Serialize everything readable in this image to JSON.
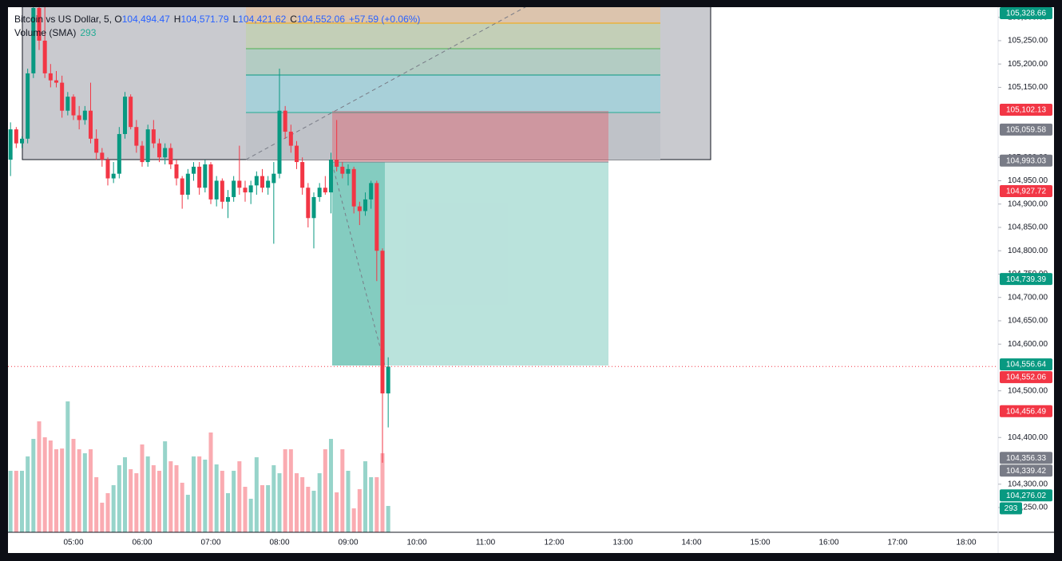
{
  "chart_data": {
    "type": "candlestick",
    "title": "Bitcoin vs US Dollar, 5,",
    "legend": [
      {
        "key": "O",
        "value": "104,494.47"
      },
      {
        "key": "H",
        "value": "104,571.79"
      },
      {
        "key": "L",
        "value": "104,421.62"
      },
      {
        "key": "C",
        "value": "104,552.06"
      }
    ],
    "change": "+57.59 (+0.06%)",
    "volume_title": "Volume (SMA)",
    "volume_label": "293",
    "x": [
      "04:05",
      "04:10",
      "04:15",
      "04:20",
      "04:25",
      "04:30",
      "04:35",
      "04:40",
      "04:45",
      "04:50",
      "04:55",
      "05:00",
      "05:05",
      "05:10",
      "05:15",
      "05:20",
      "05:25",
      "05:30",
      "05:35",
      "05:40",
      "05:45",
      "05:50",
      "05:55",
      "06:00",
      "06:05",
      "06:10",
      "06:15",
      "06:20",
      "06:25",
      "06:30",
      "06:35",
      "06:40",
      "06:45",
      "06:50",
      "06:55",
      "07:00",
      "07:05",
      "07:10",
      "07:15",
      "07:20",
      "07:25",
      "07:30",
      "07:35",
      "07:40",
      "07:45",
      "07:50",
      "07:55",
      "08:00",
      "08:05",
      "08:10",
      "08:15",
      "08:20",
      "08:25",
      "08:30",
      "08:35",
      "08:40",
      "08:45",
      "08:50",
      "08:55",
      "09:00",
      "09:05",
      "09:10",
      "09:15",
      "09:20",
      "09:25",
      "09:30",
      "09:35"
    ],
    "open": [
      104995,
      105060,
      105030,
      105040,
      105180,
      105320,
      105250,
      105180,
      105165,
      105160,
      105100,
      105130,
      105090,
      105080,
      105100,
      105040,
      105010,
      104995,
      104955,
      104965,
      105050,
      105130,
      105065,
      105025,
      104990,
      105060,
      105030,
      105000,
      105020,
      104985,
      104955,
      104920,
      104965,
      104980,
      104935,
      104985,
      104910,
      104950,
      104905,
      104915,
      104950,
      104935,
      104925,
      104940,
      104960,
      104935,
      104945,
      104965,
      105100,
      105055,
      105025,
      104990,
      104935,
      104870,
      104915,
      104935,
      104925,
      104995,
      104980,
      104965,
      104975,
      104895,
      104885,
      104910,
      104945,
      104800,
      104494.47
    ],
    "high": [
      105075,
      105065,
      105045,
      105190,
      105330,
      105340,
      105330,
      105200,
      105185,
      105175,
      105140,
      105135,
      105110,
      105110,
      105160,
      105060,
      105020,
      105000,
      104990,
      105065,
      105140,
      105135,
      105080,
      105035,
      105070,
      105080,
      105040,
      105030,
      105030,
      104995,
      104960,
      104975,
      104990,
      104990,
      104995,
      104990,
      104960,
      104955,
      104930,
      104960,
      105025,
      104950,
      104950,
      104970,
      104975,
      104960,
      104990,
      105190,
      105110,
      105070,
      105035,
      105000,
      104945,
      104925,
      104945,
      104960,
      105010,
      105080,
      104990,
      104985,
      104980,
      104905,
      104925,
      104950,
      104950,
      104805,
      104571.79
    ],
    "low": [
      104960,
      105020,
      105020,
      105030,
      105170,
      105230,
      105170,
      105150,
      105150,
      105085,
      105090,
      105080,
      105060,
      105070,
      105030,
      104995,
      104980,
      104940,
      104945,
      104955,
      105040,
      105060,
      105010,
      104980,
      104980,
      105020,
      104990,
      104985,
      104975,
      104940,
      104890,
      104910,
      104950,
      104920,
      104925,
      104900,
      104895,
      104890,
      104870,
      104905,
      104920,
      104905,
      104900,
      104920,
      104925,
      104920,
      104815,
      104955,
      105040,
      105010,
      104975,
      104920,
      104850,
      104805,
      104905,
      104920,
      104880,
      104970,
      104955,
      104940,
      104880,
      104855,
      104875,
      104890,
      104735,
      104346,
      104421.62
    ],
    "close": [
      105060,
      105030,
      105040,
      105180,
      105320,
      105250,
      105180,
      105165,
      105160,
      105100,
      105130,
      105090,
      105080,
      105100,
      105040,
      105010,
      104995,
      104955,
      104965,
      105050,
      105130,
      105065,
      105025,
      104990,
      105060,
      105030,
      105000,
      105020,
      104985,
      104955,
      104920,
      104965,
      104980,
      104935,
      104985,
      104910,
      104950,
      104905,
      104915,
      104950,
      104935,
      104925,
      104940,
      104960,
      104935,
      104950,
      104965,
      105100,
      105055,
      105025,
      104990,
      104935,
      104870,
      104915,
      104935,
      104925,
      104995,
      104980,
      104965,
      104975,
      104895,
      104885,
      104910,
      104945,
      104800,
      104494.47,
      104552.06
    ],
    "volume": [
      684,
      684,
      684,
      844,
      1039,
      1234,
      1057,
      1021,
      924,
      932,
      1456,
      1039,
      924,
      879,
      924,
      613,
      329,
      435,
      524,
      746,
      835,
      702,
      657,
      977,
      844,
      746,
      684,
      1012,
      790,
      746,
      551,
      417,
      844,
      844,
      808,
      1110,
      755,
      684,
      435,
      684,
      790,
      506,
      373,
      835,
      524,
      524,
      746,
      657,
      924,
      924,
      657,
      613,
      506,
      462,
      657,
      924,
      1039,
      444,
      924,
      684,
      266,
      480,
      790,
      613,
      613,
      879,
      293
    ],
    "up_color": "#089981",
    "down_color": "#f23645",
    "ylim": [
      104197,
      105320
    ],
    "yticks": [
      {
        "value": 105300,
        "label": "105,300.00"
      },
      {
        "value": 105250,
        "label": "105,250.00"
      },
      {
        "value": 105200,
        "label": "105,200.00"
      },
      {
        "value": 105150,
        "label": "105,150.00"
      },
      {
        "value": 105000,
        "label": "105,000.00"
      },
      {
        "value": 104950,
        "label": "104,950.00"
      },
      {
        "value": 104900,
        "label": "104,900.00"
      },
      {
        "value": 104850,
        "label": "104,850.00"
      },
      {
        "value": 104800,
        "label": "104,800.00"
      },
      {
        "value": 104750,
        "label": "104,750.00"
      },
      {
        "value": 104700,
        "label": "104,700.00"
      },
      {
        "value": 104650,
        "label": "104,650.00"
      },
      {
        "value": 104600,
        "label": "104,600.00"
      },
      {
        "value": 104500,
        "label": "104,500.00"
      },
      {
        "value": 104400,
        "label": "104,400.00"
      },
      {
        "value": 104300,
        "label": "104,300.00"
      },
      {
        "value": 104250,
        "label": "104,250.00"
      }
    ],
    "xticks": [
      "05:00",
      "06:00",
      "07:00",
      "08:00",
      "09:00",
      "10:00",
      "11:00",
      "12:00",
      "13:00",
      "14:00",
      "15:00",
      "16:00",
      "17:00",
      "18:00"
    ],
    "current_price": 104552.06,
    "price_tags": [
      {
        "value": 105328.66,
        "label": "105,328.66",
        "color": "#089981"
      },
      {
        "value": 105102.13,
        "label": "105,102.13",
        "color": "#f23645"
      },
      {
        "value": 105059.58,
        "label": "105,059.58",
        "color": "#787b86"
      },
      {
        "value": 104993.03,
        "label": "104,993.03",
        "color": "#787b86"
      },
      {
        "value": 104927.72,
        "label": "104,927.72",
        "color": "#f23645"
      },
      {
        "value": 104739.39,
        "label": "104,739.39",
        "color": "#089981"
      },
      {
        "value": 104556.64,
        "label": "104,556.64",
        "color": "#089981"
      },
      {
        "value": 104552.06,
        "label": "104,552.06",
        "color": "#f23645"
      },
      {
        "value": 104456.49,
        "label": "104,456.49",
        "color": "#f23645"
      },
      {
        "value": 104356.33,
        "label": "104,356.33",
        "color": "#787b86"
      },
      {
        "value": 104339.42,
        "label": "104,339.42",
        "color": "#787b86"
      },
      {
        "value": 104276.02,
        "label": "104,276.02",
        "color": "#089981"
      }
    ],
    "volume_tag": 293,
    "grid": false
  }
}
